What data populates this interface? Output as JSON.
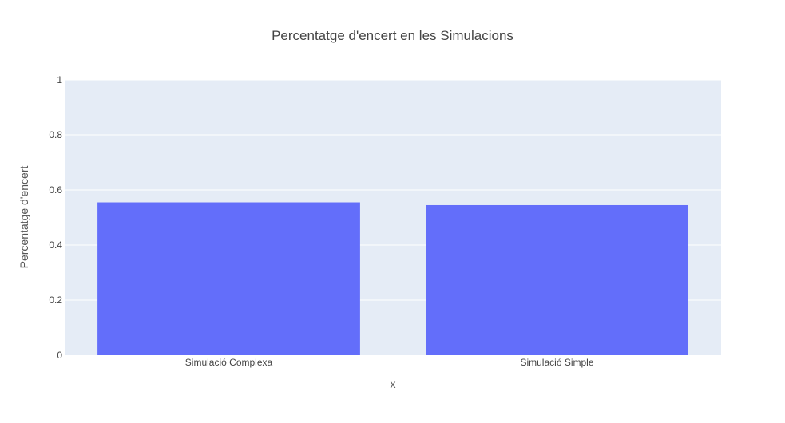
{
  "chart_data": {
    "type": "bar",
    "title": "Percentatge d'encert en les Simulacions",
    "xlabel": "x",
    "ylabel": "Percentatge d'encert",
    "categories": [
      "Simulació Complexa",
      "Simulació Simple"
    ],
    "values": [
      0.555,
      0.545
    ],
    "ylim": [
      0,
      1
    ],
    "yticks": [
      0,
      0.2,
      0.4,
      0.6,
      0.8,
      1
    ],
    "ytick_labels": [
      "0",
      "0.2",
      "0.4",
      "0.6",
      "0.8",
      "1"
    ],
    "grid": true,
    "colors": {
      "bar": "#636efa",
      "plot_background": "#e5ecf6",
      "grid": "#ffffff"
    }
  }
}
